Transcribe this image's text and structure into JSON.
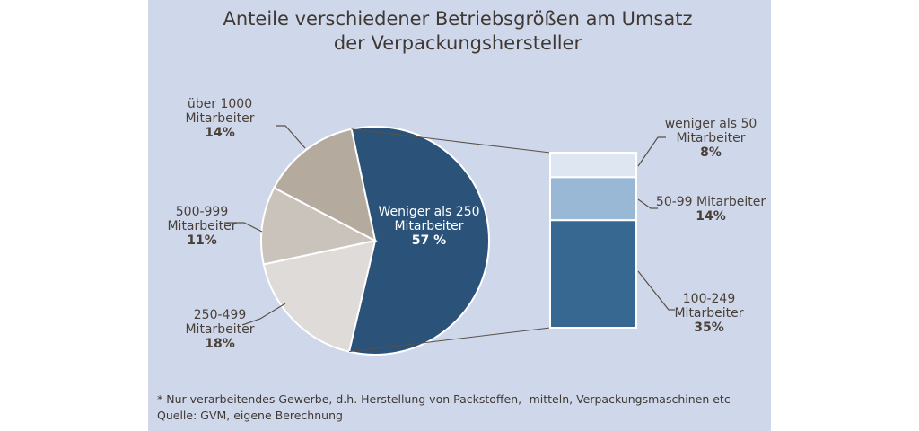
{
  "chart_data": {
    "type": "pie",
    "title_lines": [
      "Anteile verschiedener Betriebsgrößen am Umsatz",
      "der Verpackungshersteller"
    ],
    "pie": [
      {
        "label": [
          "Weniger als 250",
          "Mitarbeiter"
        ],
        "value": 57,
        "value_label": "57 %",
        "color": "#2b5278"
      },
      {
        "label": [
          "250-499",
          "Mitarbeiter"
        ],
        "value": 18,
        "value_label": "18%",
        "color": "#dedbd9"
      },
      {
        "label": [
          "500-999",
          "Mitarbeiter"
        ],
        "value": 11,
        "value_label": "11%",
        "color": "#c9c3bb"
      },
      {
        "label": [
          "über 1000",
          "Mitarbeiter"
        ],
        "value": 14,
        "value_label": "14%",
        "color": "#b4aa9d"
      }
    ],
    "breakdown_bar": [
      {
        "label": [
          "weniger als 50",
          "Mitarbeiter"
        ],
        "value": 8,
        "value_label": "8%",
        "color": "#dde6f1"
      },
      {
        "label": [
          "50-99 Mitarbeiter"
        ],
        "value": 14,
        "value_label": "14%",
        "color": "#98b8d6"
      },
      {
        "label": [
          "100-249",
          "Mitarbeiter"
        ],
        "value": 35,
        "value_label": "35%",
        "color": "#376891"
      }
    ],
    "footnotes": [
      "* Nur verarbeitendes Gewerbe, d.h. Herstellung von Packstoffen, -mitteln, Verpackungsmaschinen etc",
      "Quelle: GVM, eigene Berechnung"
    ]
  }
}
